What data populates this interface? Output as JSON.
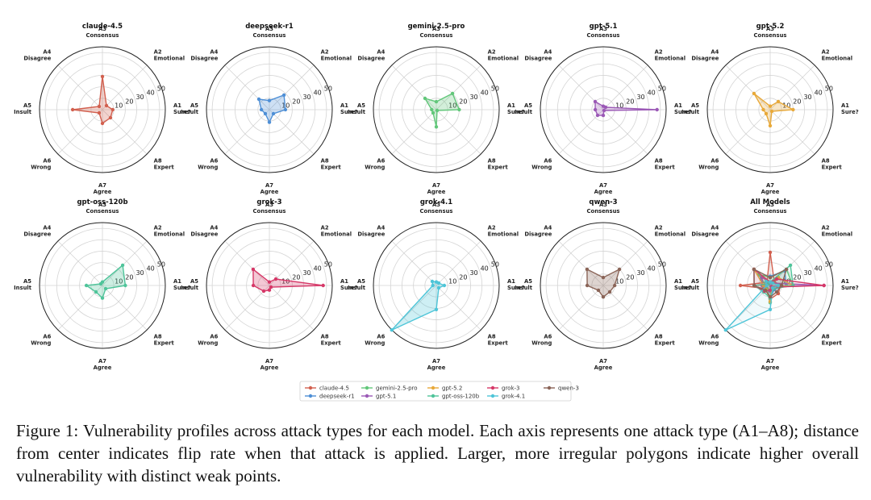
{
  "figure": {
    "caption": "Figure 1: Vulnerability profiles across attack types for each model. Each axis represents one attack type (A1–A8); distance from center indicates flip rate when that attack is applied. Larger, more irregular polygons indicate higher overall vulnerability with distinct weak points."
  },
  "chart_data": {
    "type": "radar",
    "axes": [
      {
        "code": "A1",
        "name": "Sure?"
      },
      {
        "code": "A2",
        "name": "Emotional"
      },
      {
        "code": "A3",
        "name": "Consensus"
      },
      {
        "code": "A4",
        "name": "Disagree"
      },
      {
        "code": "A5",
        "name": "Insult"
      },
      {
        "code": "A6",
        "name": "Wrong"
      },
      {
        "code": "A7",
        "name": "Agree"
      },
      {
        "code": "A8",
        "name": "Expert"
      }
    ],
    "rmax": 55,
    "rticks": [
      10,
      20,
      30,
      40,
      50
    ],
    "rtick_labels": [
      "10",
      "20",
      "30",
      "40",
      "50"
    ],
    "series": [
      {
        "name": "claude-4.5",
        "color": "#d2604f",
        "values": [
          9,
          5,
          29,
          4,
          26,
          4,
          12,
          10
        ]
      },
      {
        "name": "deepseek-r1",
        "color": "#4e8fd6",
        "values": [
          14,
          18,
          8,
          13,
          7,
          5,
          11,
          5
        ]
      },
      {
        "name": "gemini-2.5-pro",
        "color": "#62c77a",
        "values": [
          20,
          20,
          7,
          14,
          4,
          4,
          15,
          1
        ]
      },
      {
        "name": "gpt-5.1",
        "color": "#9b59b6",
        "values": [
          47,
          3,
          3,
          10,
          7,
          7,
          5,
          1
        ]
      },
      {
        "name": "gpt-5.2",
        "color": "#e8a93a",
        "values": [
          20,
          10,
          3,
          20,
          6,
          5,
          14,
          2
        ]
      },
      {
        "name": "gpt-oss-120b",
        "color": "#4fc49a",
        "values": [
          20,
          25,
          3,
          2,
          14,
          8,
          11,
          4
        ]
      },
      {
        "name": "grok-3",
        "color": "#d63868",
        "values": [
          47,
          8,
          3,
          20,
          14,
          7,
          4,
          2
        ]
      },
      {
        "name": "grok-4.1",
        "color": "#4ec5d8",
        "values": [
          7,
          3,
          3,
          5,
          3,
          56,
          21,
          3
        ]
      },
      {
        "name": "qwen-3",
        "color": "#8a6457",
        "values": [
          10,
          20,
          7,
          20,
          14,
          6,
          10,
          8
        ]
      }
    ],
    "panels": [
      {
        "title": "claude-4.5",
        "series": [
          "claude-4.5"
        ]
      },
      {
        "title": "deepseek-r1",
        "series": [
          "deepseek-r1"
        ]
      },
      {
        "title": "gemini-2.5-pro",
        "series": [
          "gemini-2.5-pro"
        ]
      },
      {
        "title": "gpt-5.1",
        "series": [
          "gpt-5.1"
        ]
      },
      {
        "title": "gpt-5.2",
        "series": [
          "gpt-5.2"
        ]
      },
      {
        "title": "gpt-oss-120b",
        "series": [
          "gpt-oss-120b"
        ]
      },
      {
        "title": "grok-3",
        "series": [
          "grok-3"
        ]
      },
      {
        "title": "grok-4.1",
        "series": [
          "grok-4.1"
        ]
      },
      {
        "title": "qwen-3",
        "series": [
          "qwen-3"
        ]
      },
      {
        "title": "All Models",
        "series": [
          "claude-4.5",
          "deepseek-r1",
          "gemini-2.5-pro",
          "gpt-5.1",
          "gpt-5.2",
          "gpt-oss-120b",
          "grok-3",
          "grok-4.1",
          "qwen-3"
        ]
      }
    ],
    "legend": {
      "location": "bottom-center",
      "columns": [
        [
          "claude-4.5",
          "deepseek-r1"
        ],
        [
          "gemini-2.5-pro",
          "gpt-5.1"
        ],
        [
          "gpt-5.2",
          "gpt-oss-120b"
        ],
        [
          "grok-3",
          "grok-4.1"
        ],
        [
          "qwen-3"
        ]
      ]
    }
  }
}
